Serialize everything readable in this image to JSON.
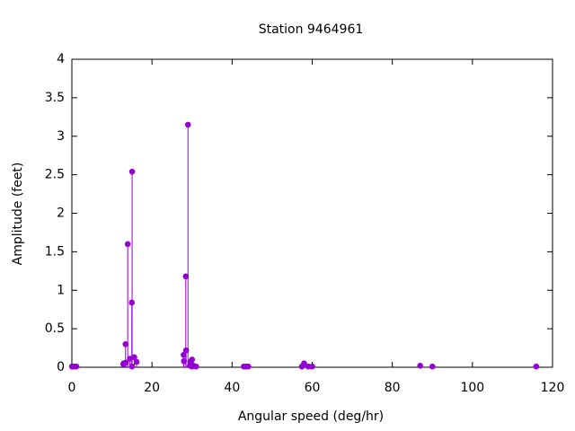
{
  "chart_data": {
    "type": "stem",
    "title": "Station 9464961",
    "xlabel": "Angular speed (deg/hr)",
    "ylabel": "Amplitude (feet)",
    "color": "#9400d3",
    "x": [
      0.041,
      0.082,
      0.544,
      1.098,
      12.854,
      12.927,
      13.399,
      13.471,
      13.943,
      14.497,
      14.959,
      15.0,
      15.041,
      15.585,
      16.139,
      27.895,
      27.968,
      28.44,
      28.512,
      28.984,
      29.455,
      29.528,
      29.959,
      30.0,
      30.082,
      31.016,
      42.927,
      43.476,
      44.025,
      57.424,
      57.968,
      58.984,
      60.0,
      86.952,
      90.0,
      115.936
    ],
    "values": [
      0.01,
      0.01,
      0.01,
      0.01,
      0.04,
      0.05,
      0.3,
      0.06,
      1.6,
      0.11,
      0.84,
      0.01,
      2.54,
      0.13,
      0.07,
      0.16,
      0.08,
      1.18,
      0.22,
      3.15,
      0.02,
      0.07,
      0.01,
      0.1,
      0.03,
      0.01,
      0.01,
      0.01,
      0.01,
      0.01,
      0.05,
      0.01,
      0.01,
      0.02,
      0.01,
      0.01
    ],
    "xlim": [
      0,
      120
    ],
    "ylim": [
      0,
      4
    ],
    "xticks": [
      0,
      20,
      40,
      60,
      80,
      100,
      120
    ],
    "yticks": [
      0,
      0.5,
      1,
      1.5,
      2,
      2.5,
      3,
      3.5,
      4
    ]
  }
}
